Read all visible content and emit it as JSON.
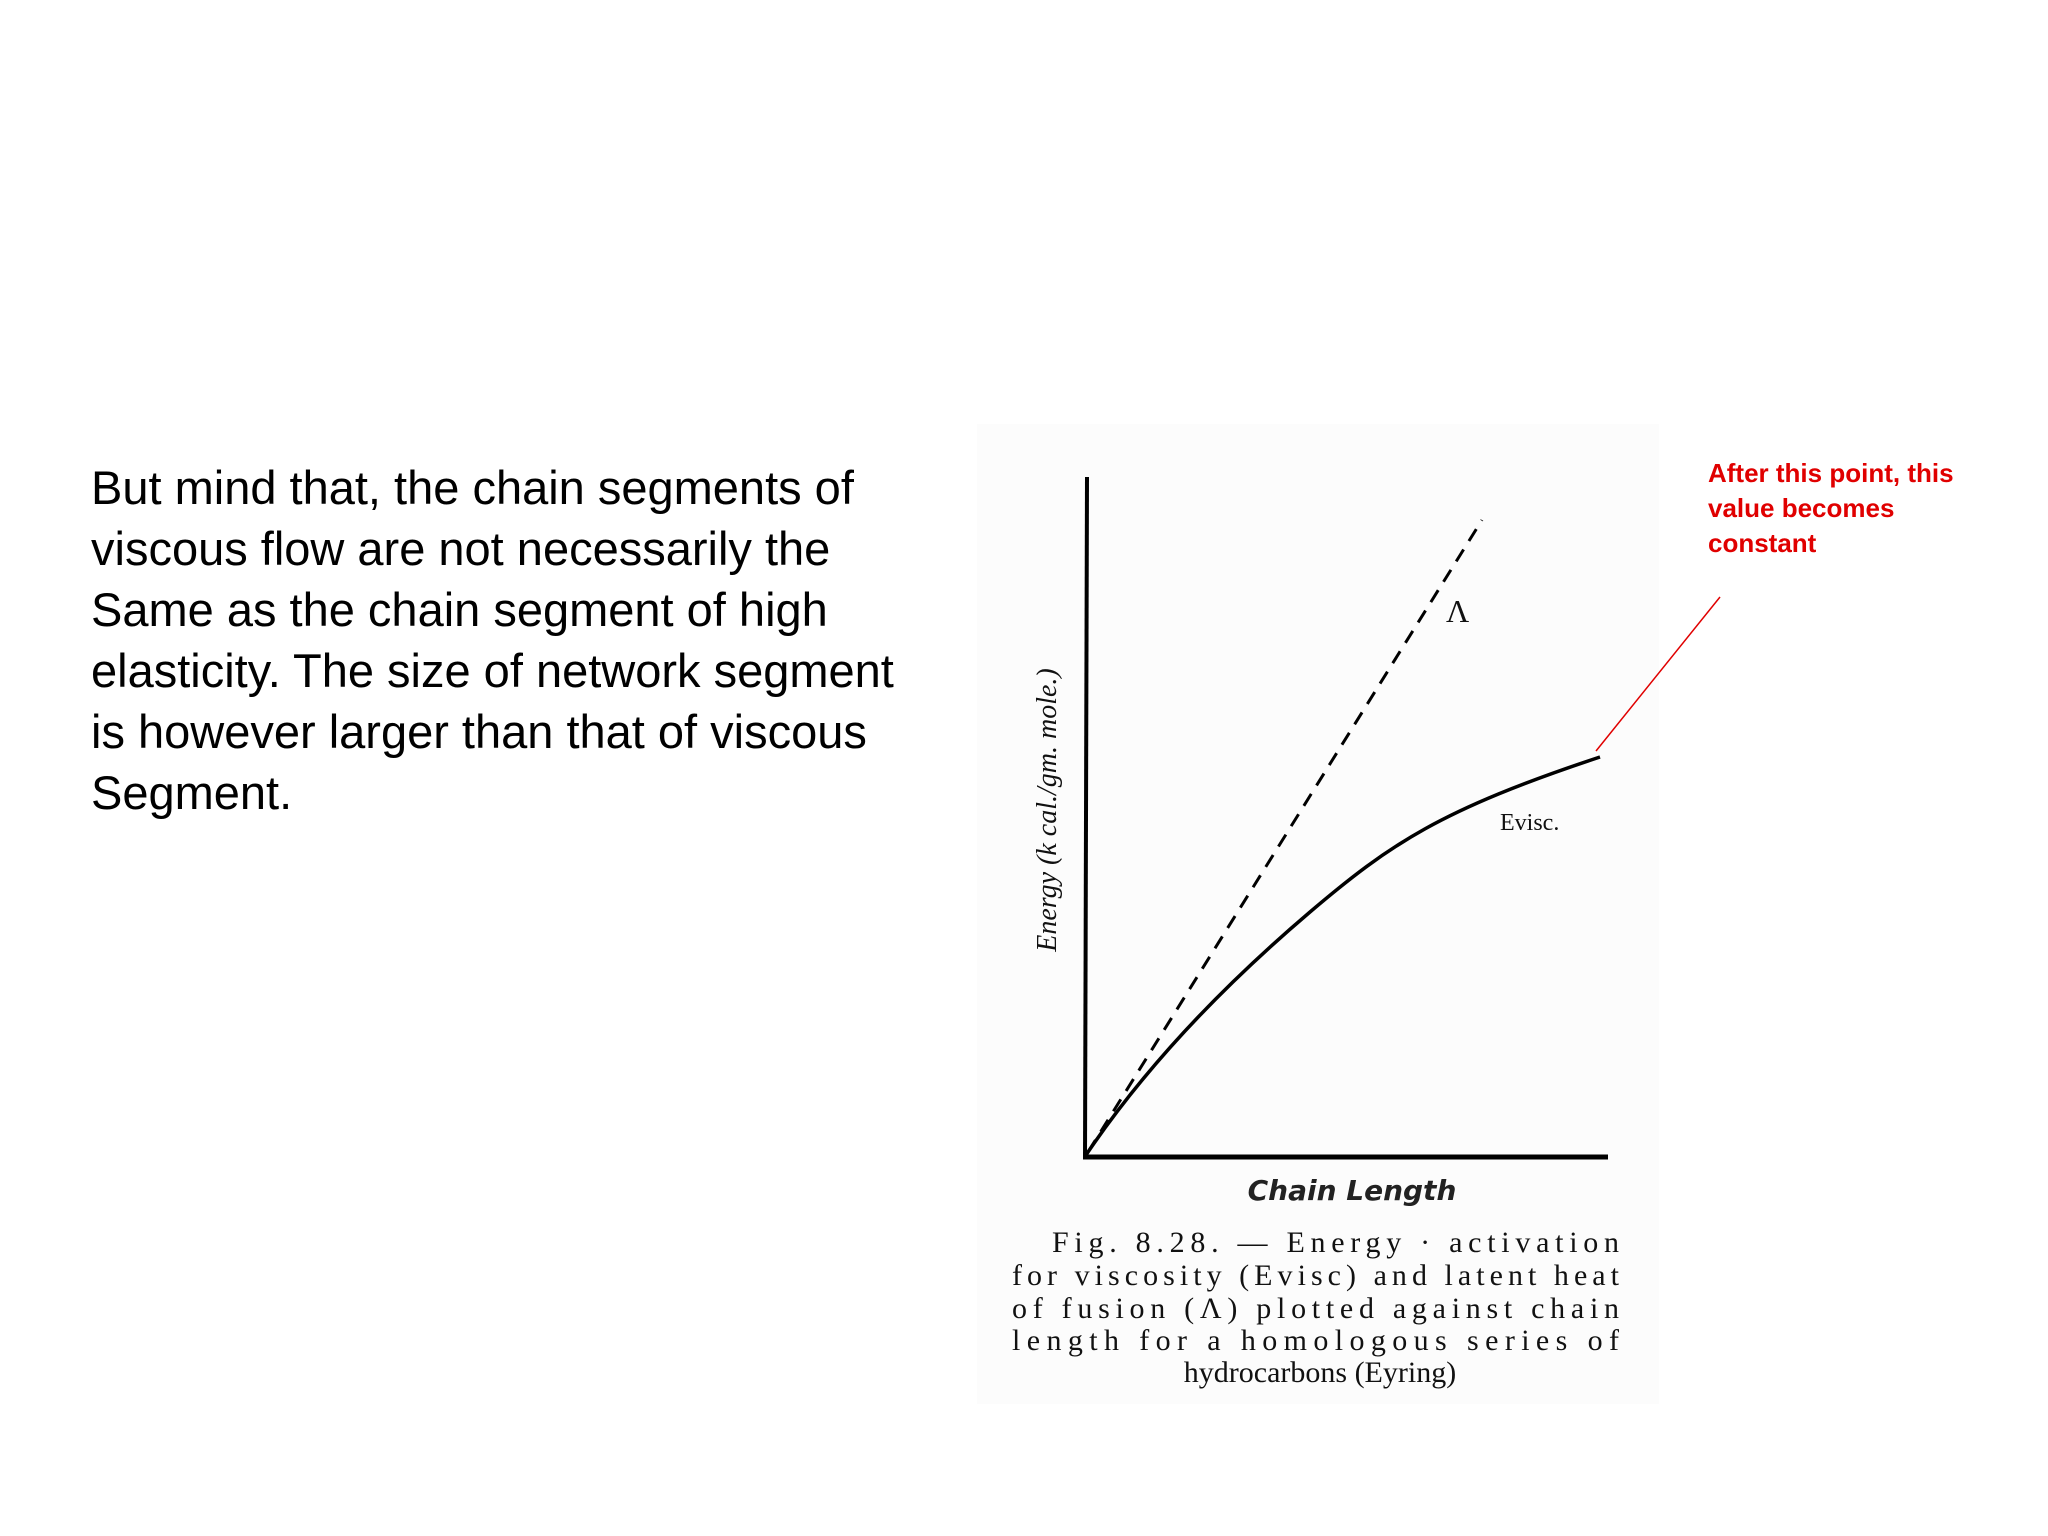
{
  "body": {
    "lines": [
      "But mind that, the chain segments of",
      "viscous flow are not necessarily the",
      "Same as the chain segment of high",
      "elasticity. The size of network segment",
      "is however larger than that of viscous",
      "Segment."
    ]
  },
  "figure": {
    "y_axis_label": "Energy (k cal./gm. mole.)",
    "x_axis_label": "Chain Length",
    "curve_labels": [
      "Λ",
      "Evisc."
    ],
    "caption": [
      "Fig. 8.28. — Energy · activation",
      "for viscosity (Evisc) and latent heat",
      "of fusion (Λ) plotted against chain",
      "length for a homologous series of",
      "hydrocarbons (Eyring)"
    ]
  },
  "annotation": {
    "lines": [
      "After this point, this",
      "value becomes",
      "constant"
    ]
  }
}
